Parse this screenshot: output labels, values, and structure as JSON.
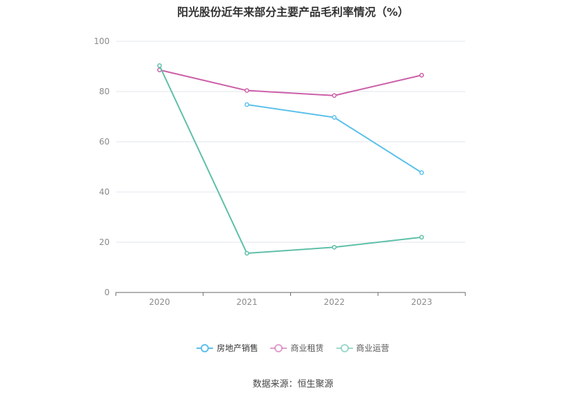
{
  "title": "阳光股份近年来部分主要产品毛利率情况（%）",
  "source": "数据来源：恒生聚源",
  "chart_data": {
    "type": "line",
    "title": "阳光股份近年来部分主要产品毛利率情况（%）",
    "categories": [
      "2020",
      "2021",
      "2022",
      "2023"
    ],
    "ylim": [
      0,
      100
    ],
    "yticks": [
      "0",
      "20",
      "40",
      "60",
      "80",
      "100"
    ],
    "grid": true,
    "legend_position": "bottom",
    "series": [
      {
        "name": "房地产销售",
        "color": "#5bc0eb",
        "values": [
          null,
          74.8,
          69.7,
          47.7
        ]
      },
      {
        "name": "商业租赁",
        "color": "#cc5fa8",
        "values": [
          88.6,
          80.4,
          78.4,
          86.5
        ]
      },
      {
        "name": "商业运营",
        "color": "#5dbfa8",
        "values": [
          90.3,
          15.6,
          18.0,
          22.0
        ]
      }
    ]
  }
}
